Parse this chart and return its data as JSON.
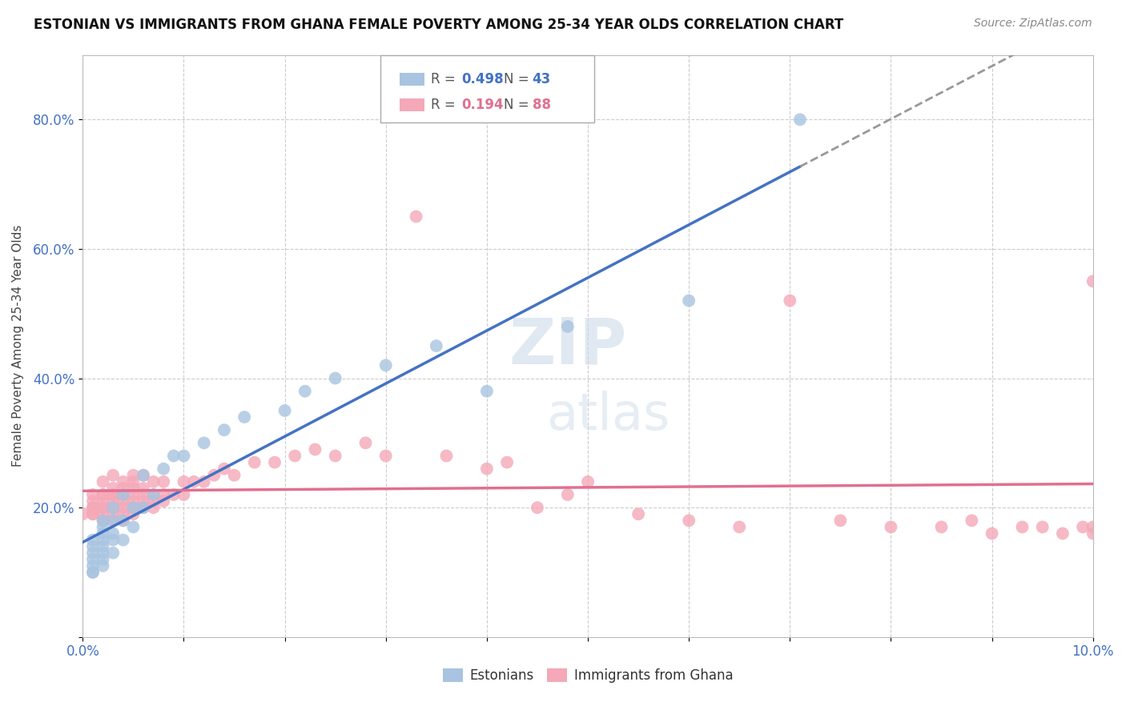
{
  "title": "ESTONIAN VS IMMIGRANTS FROM GHANA FEMALE POVERTY AMONG 25-34 YEAR OLDS CORRELATION CHART",
  "source": "Source: ZipAtlas.com",
  "ylabel": "Female Poverty Among 25-34 Year Olds",
  "xlabel": "",
  "xlim": [
    0.0,
    0.1
  ],
  "ylim": [
    0.0,
    0.9
  ],
  "ytick_labels": [
    "",
    "20.0%",
    "40.0%",
    "60.0%",
    "80.0%"
  ],
  "ytick_vals": [
    0.0,
    0.2,
    0.4,
    0.6,
    0.8
  ],
  "xtick_vals": [
    0.0,
    0.01,
    0.02,
    0.03,
    0.04,
    0.05,
    0.06,
    0.07,
    0.08,
    0.09,
    0.1
  ],
  "estonian_color": "#a8c4e0",
  "ghana_color": "#f4a8b8",
  "estonian_line_color": "#4472c4",
  "ghana_line_color": "#e07090",
  "legend_estonian_r": "0.498",
  "legend_estonian_n": "43",
  "legend_ghana_r": "0.194",
  "legend_ghana_n": "88",
  "background_color": "#ffffff",
  "estonian_x": [
    0.001,
    0.001,
    0.001,
    0.001,
    0.001,
    0.001,
    0.001,
    0.002,
    0.002,
    0.002,
    0.002,
    0.002,
    0.002,
    0.002,
    0.002,
    0.003,
    0.003,
    0.003,
    0.003,
    0.003,
    0.004,
    0.004,
    0.004,
    0.005,
    0.005,
    0.006,
    0.006,
    0.007,
    0.008,
    0.009,
    0.01,
    0.012,
    0.014,
    0.016,
    0.02,
    0.022,
    0.025,
    0.03,
    0.035,
    0.04,
    0.048,
    0.06,
    0.071
  ],
  "estonian_y": [
    0.1,
    0.1,
    0.11,
    0.12,
    0.13,
    0.14,
    0.15,
    0.11,
    0.12,
    0.13,
    0.14,
    0.15,
    0.16,
    0.17,
    0.18,
    0.13,
    0.15,
    0.16,
    0.18,
    0.2,
    0.15,
    0.18,
    0.22,
    0.17,
    0.2,
    0.2,
    0.25,
    0.22,
    0.26,
    0.28,
    0.28,
    0.3,
    0.32,
    0.34,
    0.35,
    0.38,
    0.4,
    0.42,
    0.45,
    0.38,
    0.48,
    0.52,
    0.8
  ],
  "ghana_x": [
    0.0,
    0.001,
    0.001,
    0.001,
    0.001,
    0.001,
    0.001,
    0.002,
    0.002,
    0.002,
    0.002,
    0.002,
    0.002,
    0.002,
    0.002,
    0.003,
    0.003,
    0.003,
    0.003,
    0.003,
    0.003,
    0.003,
    0.003,
    0.003,
    0.004,
    0.004,
    0.004,
    0.004,
    0.004,
    0.004,
    0.004,
    0.005,
    0.005,
    0.005,
    0.005,
    0.005,
    0.005,
    0.005,
    0.006,
    0.006,
    0.006,
    0.006,
    0.006,
    0.007,
    0.007,
    0.007,
    0.007,
    0.008,
    0.008,
    0.008,
    0.009,
    0.01,
    0.01,
    0.011,
    0.012,
    0.013,
    0.014,
    0.015,
    0.017,
    0.019,
    0.021,
    0.023,
    0.025,
    0.028,
    0.03,
    0.033,
    0.036,
    0.04,
    0.042,
    0.045,
    0.048,
    0.05,
    0.055,
    0.06,
    0.065,
    0.07,
    0.075,
    0.08,
    0.085,
    0.088,
    0.09,
    0.093,
    0.095,
    0.097,
    0.099,
    0.1,
    0.1,
    0.1
  ],
  "ghana_y": [
    0.19,
    0.19,
    0.19,
    0.2,
    0.2,
    0.21,
    0.22,
    0.18,
    0.19,
    0.2,
    0.2,
    0.21,
    0.22,
    0.22,
    0.24,
    0.18,
    0.19,
    0.2,
    0.2,
    0.21,
    0.22,
    0.22,
    0.23,
    0.25,
    0.18,
    0.19,
    0.2,
    0.21,
    0.22,
    0.23,
    0.24,
    0.19,
    0.2,
    0.21,
    0.22,
    0.23,
    0.24,
    0.25,
    0.2,
    0.21,
    0.22,
    0.23,
    0.25,
    0.2,
    0.21,
    0.22,
    0.24,
    0.21,
    0.22,
    0.24,
    0.22,
    0.22,
    0.24,
    0.24,
    0.24,
    0.25,
    0.26,
    0.25,
    0.27,
    0.27,
    0.28,
    0.29,
    0.28,
    0.3,
    0.28,
    0.65,
    0.28,
    0.26,
    0.27,
    0.2,
    0.22,
    0.24,
    0.19,
    0.18,
    0.17,
    0.52,
    0.18,
    0.17,
    0.17,
    0.18,
    0.16,
    0.17,
    0.17,
    0.16,
    0.17,
    0.17,
    0.16,
    0.55
  ]
}
